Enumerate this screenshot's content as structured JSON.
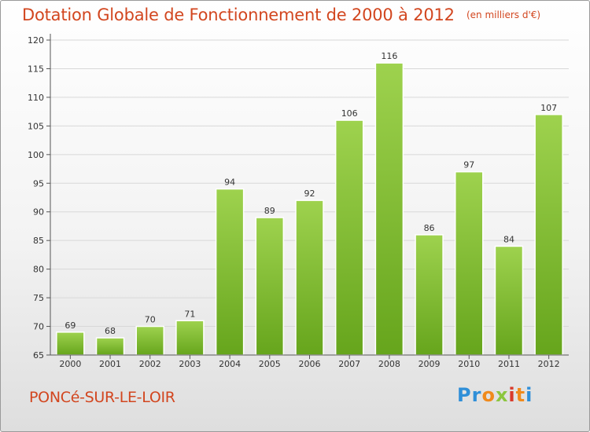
{
  "header": {
    "title": "Dotation Globale de Fonctionnement de 2000 à 2012",
    "unit": "(en milliers d'€)"
  },
  "footer": {
    "commune": "PONCé-SUR-LE-LOIR",
    "logo_letters": [
      "P",
      "r",
      "o",
      "x",
      "i",
      "t",
      "i"
    ],
    "logo_colors": [
      "#2f8fd8",
      "#2f8fd8",
      "#f08a1c",
      "#8cc63f",
      "#d93a2b",
      "#f08a1c",
      "#2f8fd8"
    ]
  },
  "colors": {
    "title": "#d2461f",
    "bar_top": "#9ed24e",
    "bar_bottom": "#66a51c",
    "grid": "#d8d8d8"
  },
  "chart_data": {
    "type": "bar",
    "title": "Dotation Globale de Fonctionnement de 2000 à 2012",
    "subtitle": "(en milliers d'€)",
    "categories": [
      "2000",
      "2001",
      "2002",
      "2003",
      "2004",
      "2005",
      "2006",
      "2007",
      "2008",
      "2009",
      "2010",
      "2011",
      "2012"
    ],
    "values": [
      69,
      68,
      70,
      71,
      94,
      89,
      92,
      106,
      116,
      86,
      97,
      84,
      107
    ],
    "ylim": [
      65,
      120
    ],
    "yticks": [
      65,
      70,
      75,
      80,
      85,
      90,
      95,
      100,
      105,
      110,
      115,
      120
    ],
    "grid": true,
    "xlabel": "",
    "ylabel": ""
  }
}
